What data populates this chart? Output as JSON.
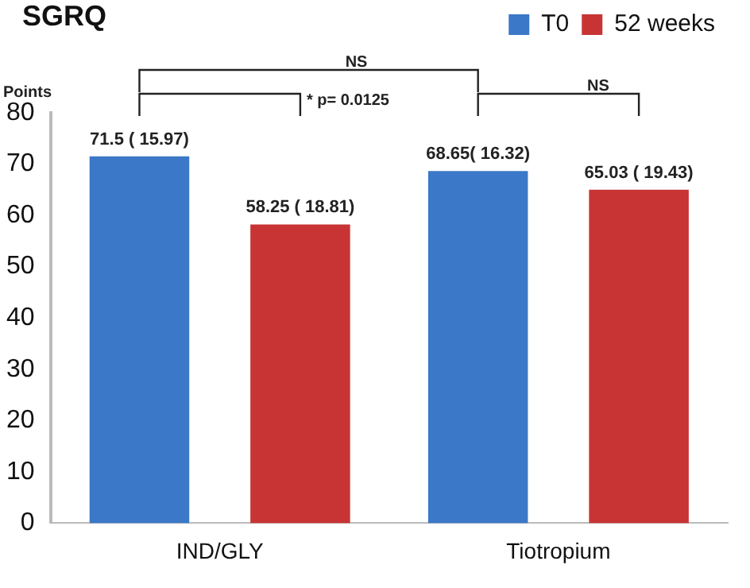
{
  "chart_data": {
    "type": "bar",
    "title": "SGRQ",
    "ylabel": "Points",
    "categories": [
      "IND/GLY",
      "Tiotropium"
    ],
    "series": [
      {
        "name": "T0",
        "color": "#3b78c8",
        "values": [
          71.5,
          68.65
        ],
        "value_labels": [
          "71.5 ( 15.97)",
          "68.65( 16.32)"
        ]
      },
      {
        "name": "52 weeks",
        "color": "#c83434",
        "values": [
          58.25,
          65.03
        ],
        "value_labels": [
          "58.25 ( 18.81)",
          "65.03 ( 19.43)"
        ]
      }
    ],
    "ylim": [
      0,
      80
    ],
    "yticks": [
      0,
      10,
      20,
      30,
      40,
      50,
      60,
      70,
      80
    ],
    "grid": false,
    "legend": "top right",
    "annotations": [
      "NS",
      "* p= 0.0125",
      "NS"
    ]
  }
}
